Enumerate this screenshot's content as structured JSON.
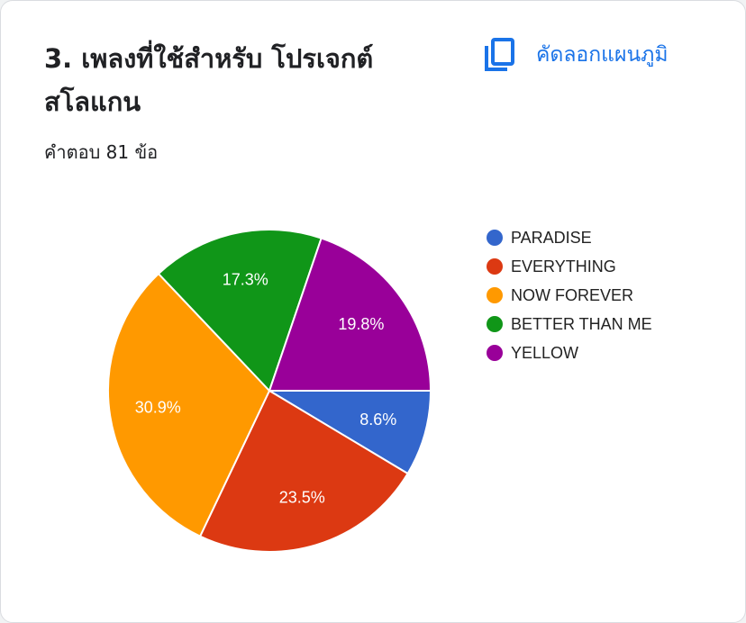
{
  "ui": {
    "copy_button": "คัดลอกแผนภูมิ"
  },
  "chart_data": {
    "type": "pie",
    "title": "3. เพลงที่ใช้สำหรับ โปรเจกต์ สโลแกน",
    "subtitle": "คำตอบ 81 ข้อ",
    "categories": [
      "PARADISE",
      "EVERYTHING",
      "NOW FOREVER",
      "BETTER THAN ME",
      "YELLOW"
    ],
    "values": [
      8.6,
      23.5,
      30.9,
      17.3,
      19.8
    ],
    "value_labels": [
      "8.6%",
      "23.5%",
      "30.9%",
      "17.3%",
      "19.8%"
    ],
    "colors": [
      "#3366cc",
      "#dc3912",
      "#ff9900",
      "#109618",
      "#990099"
    ]
  }
}
